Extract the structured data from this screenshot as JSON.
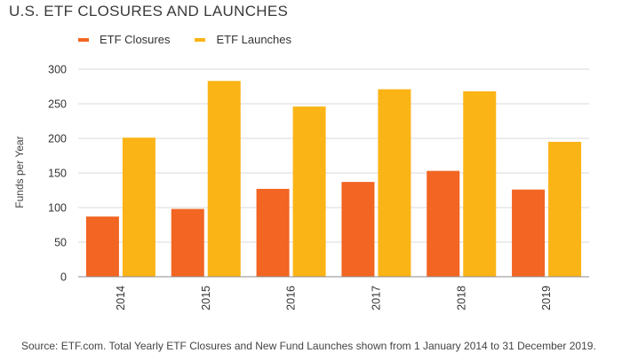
{
  "chart_data": {
    "type": "bar",
    "title": "U.S. ETF CLOSURES AND LAUNCHES",
    "ylabel": "Funds per Year",
    "xlabel": "",
    "categories": [
      "2014",
      "2015",
      "2016",
      "2017",
      "2018",
      "2019"
    ],
    "series": [
      {
        "name": "ETF Closures",
        "color": "#f26522",
        "values": [
          87,
          98,
          127,
          137,
          153,
          126
        ]
      },
      {
        "name": "ETF Launches",
        "color": "#fbb416",
        "values": [
          201,
          283,
          246,
          271,
          268,
          195
        ]
      }
    ],
    "ylim": [
      0,
      300
    ],
    "yticks": [
      "0",
      "50",
      "100",
      "150",
      "200",
      "250",
      "300"
    ],
    "grid": true,
    "legend_position": "top-left"
  },
  "source": "Source: ETF.com. Total Yearly ETF Closures and New Fund Launches shown from 1 January 2014 to 31 December 2019."
}
